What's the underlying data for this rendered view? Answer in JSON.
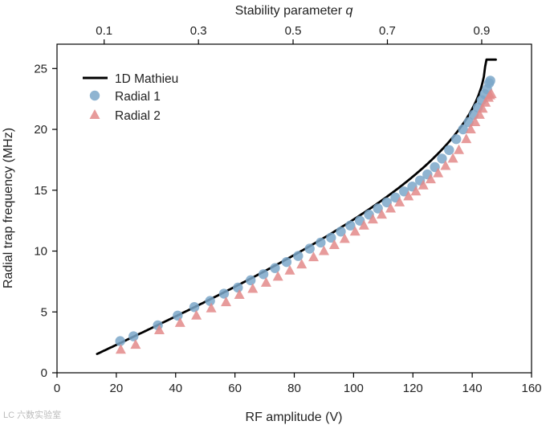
{
  "chart_data": {
    "type": "scatter",
    "xlabel": "RF amplitude (V)",
    "ylabel": "Radial trap frequency (MHz)",
    "top_xlabel_prefix": "Stability parameter ",
    "top_xlabel_var": "q",
    "xlim": [
      0,
      160
    ],
    "ylim": [
      0,
      27
    ],
    "xticks": [
      0,
      20,
      40,
      60,
      80,
      100,
      120,
      140,
      160
    ],
    "yticks": [
      0,
      5,
      10,
      15,
      20,
      25
    ],
    "top_ticks": [
      {
        "label": "0.1",
        "x": 15.9
      },
      {
        "label": "0.3",
        "x": 47.7
      },
      {
        "label": "0.5",
        "x": 79.6
      },
      {
        "label": "0.7",
        "x": 111.4
      },
      {
        "label": "0.9",
        "x": 143.2
      }
    ],
    "q_per_volt": 0.006286,
    "freq_scale_mhz": 33.2,
    "legend_position": "top-left",
    "series": [
      {
        "name": "1D Mathieu",
        "kind": "line",
        "color": "#000000",
        "q_range": [
          0.085,
          0.93
        ]
      },
      {
        "name": "Radial 1",
        "kind": "marker-circle",
        "color": "#7ba7c9",
        "x": [
          21.3,
          25.8,
          34.0,
          40.7,
          46.3,
          51.6,
          56.3,
          61.0,
          65.3,
          69.6,
          73.5,
          77.4,
          81.3,
          85.2,
          88.9,
          92.4,
          95.7,
          98.9,
          102.1,
          105.2,
          108.2,
          111.2,
          114.1,
          117.0,
          119.8,
          122.4,
          124.9,
          127.4,
          129.8,
          132.2,
          134.6,
          136.9,
          138.8,
          140.5,
          141.9,
          143.2,
          144.2,
          145.0,
          145.7,
          146.1
        ],
        "y": [
          2.6,
          3.0,
          3.9,
          4.7,
          5.4,
          5.9,
          6.5,
          7.0,
          7.6,
          8.1,
          8.6,
          9.1,
          9.6,
          10.2,
          10.7,
          11.1,
          11.6,
          12.1,
          12.5,
          13.0,
          13.5,
          14.0,
          14.4,
          14.9,
          15.3,
          15.8,
          16.3,
          16.9,
          17.6,
          18.3,
          19.2,
          20.0,
          20.6,
          21.2,
          21.8,
          22.4,
          22.9,
          23.3,
          23.8,
          24.0
        ]
      },
      {
        "name": "Radial 2",
        "kind": "marker-triangle",
        "color": "#e3898a",
        "x": [
          21.5,
          26.5,
          34.5,
          41.5,
          47.0,
          52.0,
          57.0,
          61.5,
          66.0,
          70.5,
          74.5,
          78.5,
          82.5,
          86.5,
          90.0,
          93.5,
          97.0,
          100.5,
          103.5,
          106.5,
          109.5,
          112.5,
          115.5,
          118.5,
          121.0,
          123.5,
          126.0,
          128.5,
          131.0,
          133.5,
          135.5,
          138.0,
          139.5,
          141.0,
          142.5,
          143.5,
          144.5,
          145.5,
          146.0,
          146.5
        ],
        "y": [
          1.9,
          2.3,
          3.5,
          4.1,
          4.7,
          5.3,
          5.8,
          6.4,
          6.9,
          7.4,
          7.9,
          8.4,
          8.9,
          9.5,
          10.0,
          10.5,
          11.0,
          11.6,
          12.1,
          12.6,
          13.0,
          13.5,
          14.0,
          14.5,
          14.9,
          15.4,
          15.9,
          16.4,
          17.0,
          17.6,
          18.3,
          19.2,
          20.0,
          20.6,
          21.2,
          21.7,
          22.2,
          22.6,
          22.8,
          22.9
        ]
      }
    ]
  },
  "watermark": "LC 六数实验室"
}
